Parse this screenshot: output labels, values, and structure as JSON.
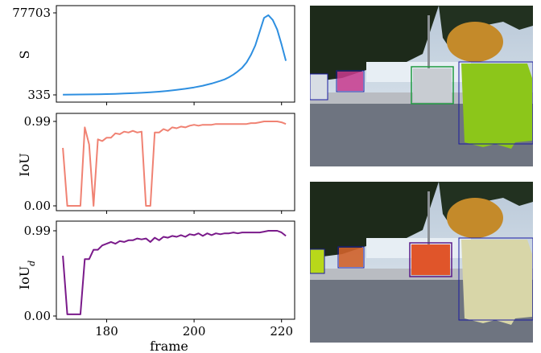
{
  "chart_data": [
    {
      "type": "line",
      "ylabel": "S",
      "ylim": [
        335,
        77703
      ],
      "yticks": [
        "77703",
        "335"
      ],
      "color": "#2e8fe0",
      "x": [
        170,
        172,
        174,
        176,
        178,
        180,
        182,
        184,
        186,
        188,
        190,
        192,
        194,
        196,
        198,
        200,
        202,
        204,
        206,
        207,
        208,
        209,
        210,
        211,
        212,
        213,
        214,
        215,
        216,
        217,
        218,
        219,
        220,
        221
      ],
      "y": [
        600,
        650,
        700,
        800,
        950,
        1100,
        1350,
        1600,
        1900,
        2300,
        2800,
        3400,
        4100,
        5000,
        6100,
        7400,
        9000,
        11000,
        13500,
        15000,
        17000,
        19500,
        22500,
        26000,
        31000,
        38000,
        47000,
        60000,
        73000,
        75500,
        71000,
        62000,
        48000,
        32500
      ]
    },
    {
      "type": "line",
      "ylabel": "IoU",
      "ylim": [
        0.0,
        0.99
      ],
      "yticks": [
        "0.99",
        "0.00"
      ],
      "color": "#f08273",
      "x": [
        170,
        171,
        172,
        173,
        174,
        175,
        176,
        177,
        178,
        179,
        180,
        181,
        182,
        183,
        184,
        185,
        186,
        187,
        188,
        189,
        190,
        191,
        192,
        193,
        194,
        195,
        196,
        197,
        198,
        199,
        200,
        201,
        202,
        203,
        204,
        205,
        206,
        207,
        208,
        209,
        210,
        211,
        212,
        213,
        214,
        215,
        216,
        217,
        218,
        219,
        220,
        221
      ],
      "y": [
        0.68,
        0.0,
        0.0,
        0.0,
        0.0,
        0.92,
        0.72,
        0.0,
        0.78,
        0.76,
        0.8,
        0.8,
        0.85,
        0.84,
        0.87,
        0.86,
        0.88,
        0.86,
        0.87,
        0.0,
        0.0,
        0.86,
        0.86,
        0.9,
        0.88,
        0.92,
        0.91,
        0.93,
        0.92,
        0.94,
        0.95,
        0.94,
        0.95,
        0.95,
        0.95,
        0.96,
        0.96,
        0.96,
        0.96,
        0.96,
        0.96,
        0.96,
        0.96,
        0.97,
        0.97,
        0.98,
        0.99,
        0.99,
        0.99,
        0.99,
        0.98,
        0.96
      ]
    },
    {
      "type": "line",
      "ylabel": "IoU",
      "ylabel_sub": "d",
      "xlabel": "frame",
      "xticks": [
        "180",
        "200",
        "220"
      ],
      "ylim": [
        0.0,
        0.99
      ],
      "yticks": [
        "0.99",
        "0.00"
      ],
      "color": "#7a1a8a",
      "x": [
        170,
        171,
        172,
        173,
        174,
        175,
        176,
        177,
        178,
        179,
        180,
        181,
        182,
        183,
        184,
        185,
        186,
        187,
        188,
        189,
        190,
        191,
        192,
        193,
        194,
        195,
        196,
        197,
        198,
        199,
        200,
        201,
        202,
        203,
        204,
        205,
        206,
        207,
        208,
        209,
        210,
        211,
        212,
        213,
        214,
        215,
        216,
        217,
        218,
        219,
        220,
        221
      ],
      "y": [
        0.7,
        0.02,
        0.02,
        0.02,
        0.02,
        0.66,
        0.66,
        0.77,
        0.77,
        0.82,
        0.84,
        0.86,
        0.84,
        0.87,
        0.86,
        0.88,
        0.88,
        0.9,
        0.89,
        0.9,
        0.86,
        0.91,
        0.88,
        0.92,
        0.91,
        0.93,
        0.92,
        0.94,
        0.92,
        0.95,
        0.94,
        0.96,
        0.93,
        0.96,
        0.94,
        0.96,
        0.95,
        0.96,
        0.96,
        0.97,
        0.96,
        0.97,
        0.97,
        0.97,
        0.97,
        0.97,
        0.98,
        0.99,
        0.99,
        0.99,
        0.97,
        0.93
      ]
    }
  ],
  "images": [
    {
      "name": "top-frame",
      "boxes": [
        "#1a1aa0",
        "#1a1aa0",
        "#1f9a40",
        "#1a1aa0"
      ]
    },
    {
      "name": "bottom-frame",
      "boxes": [
        "#1a1aa0",
        "#1a1aa0",
        "#5a1a8a",
        "#1a1aa0"
      ]
    }
  ]
}
